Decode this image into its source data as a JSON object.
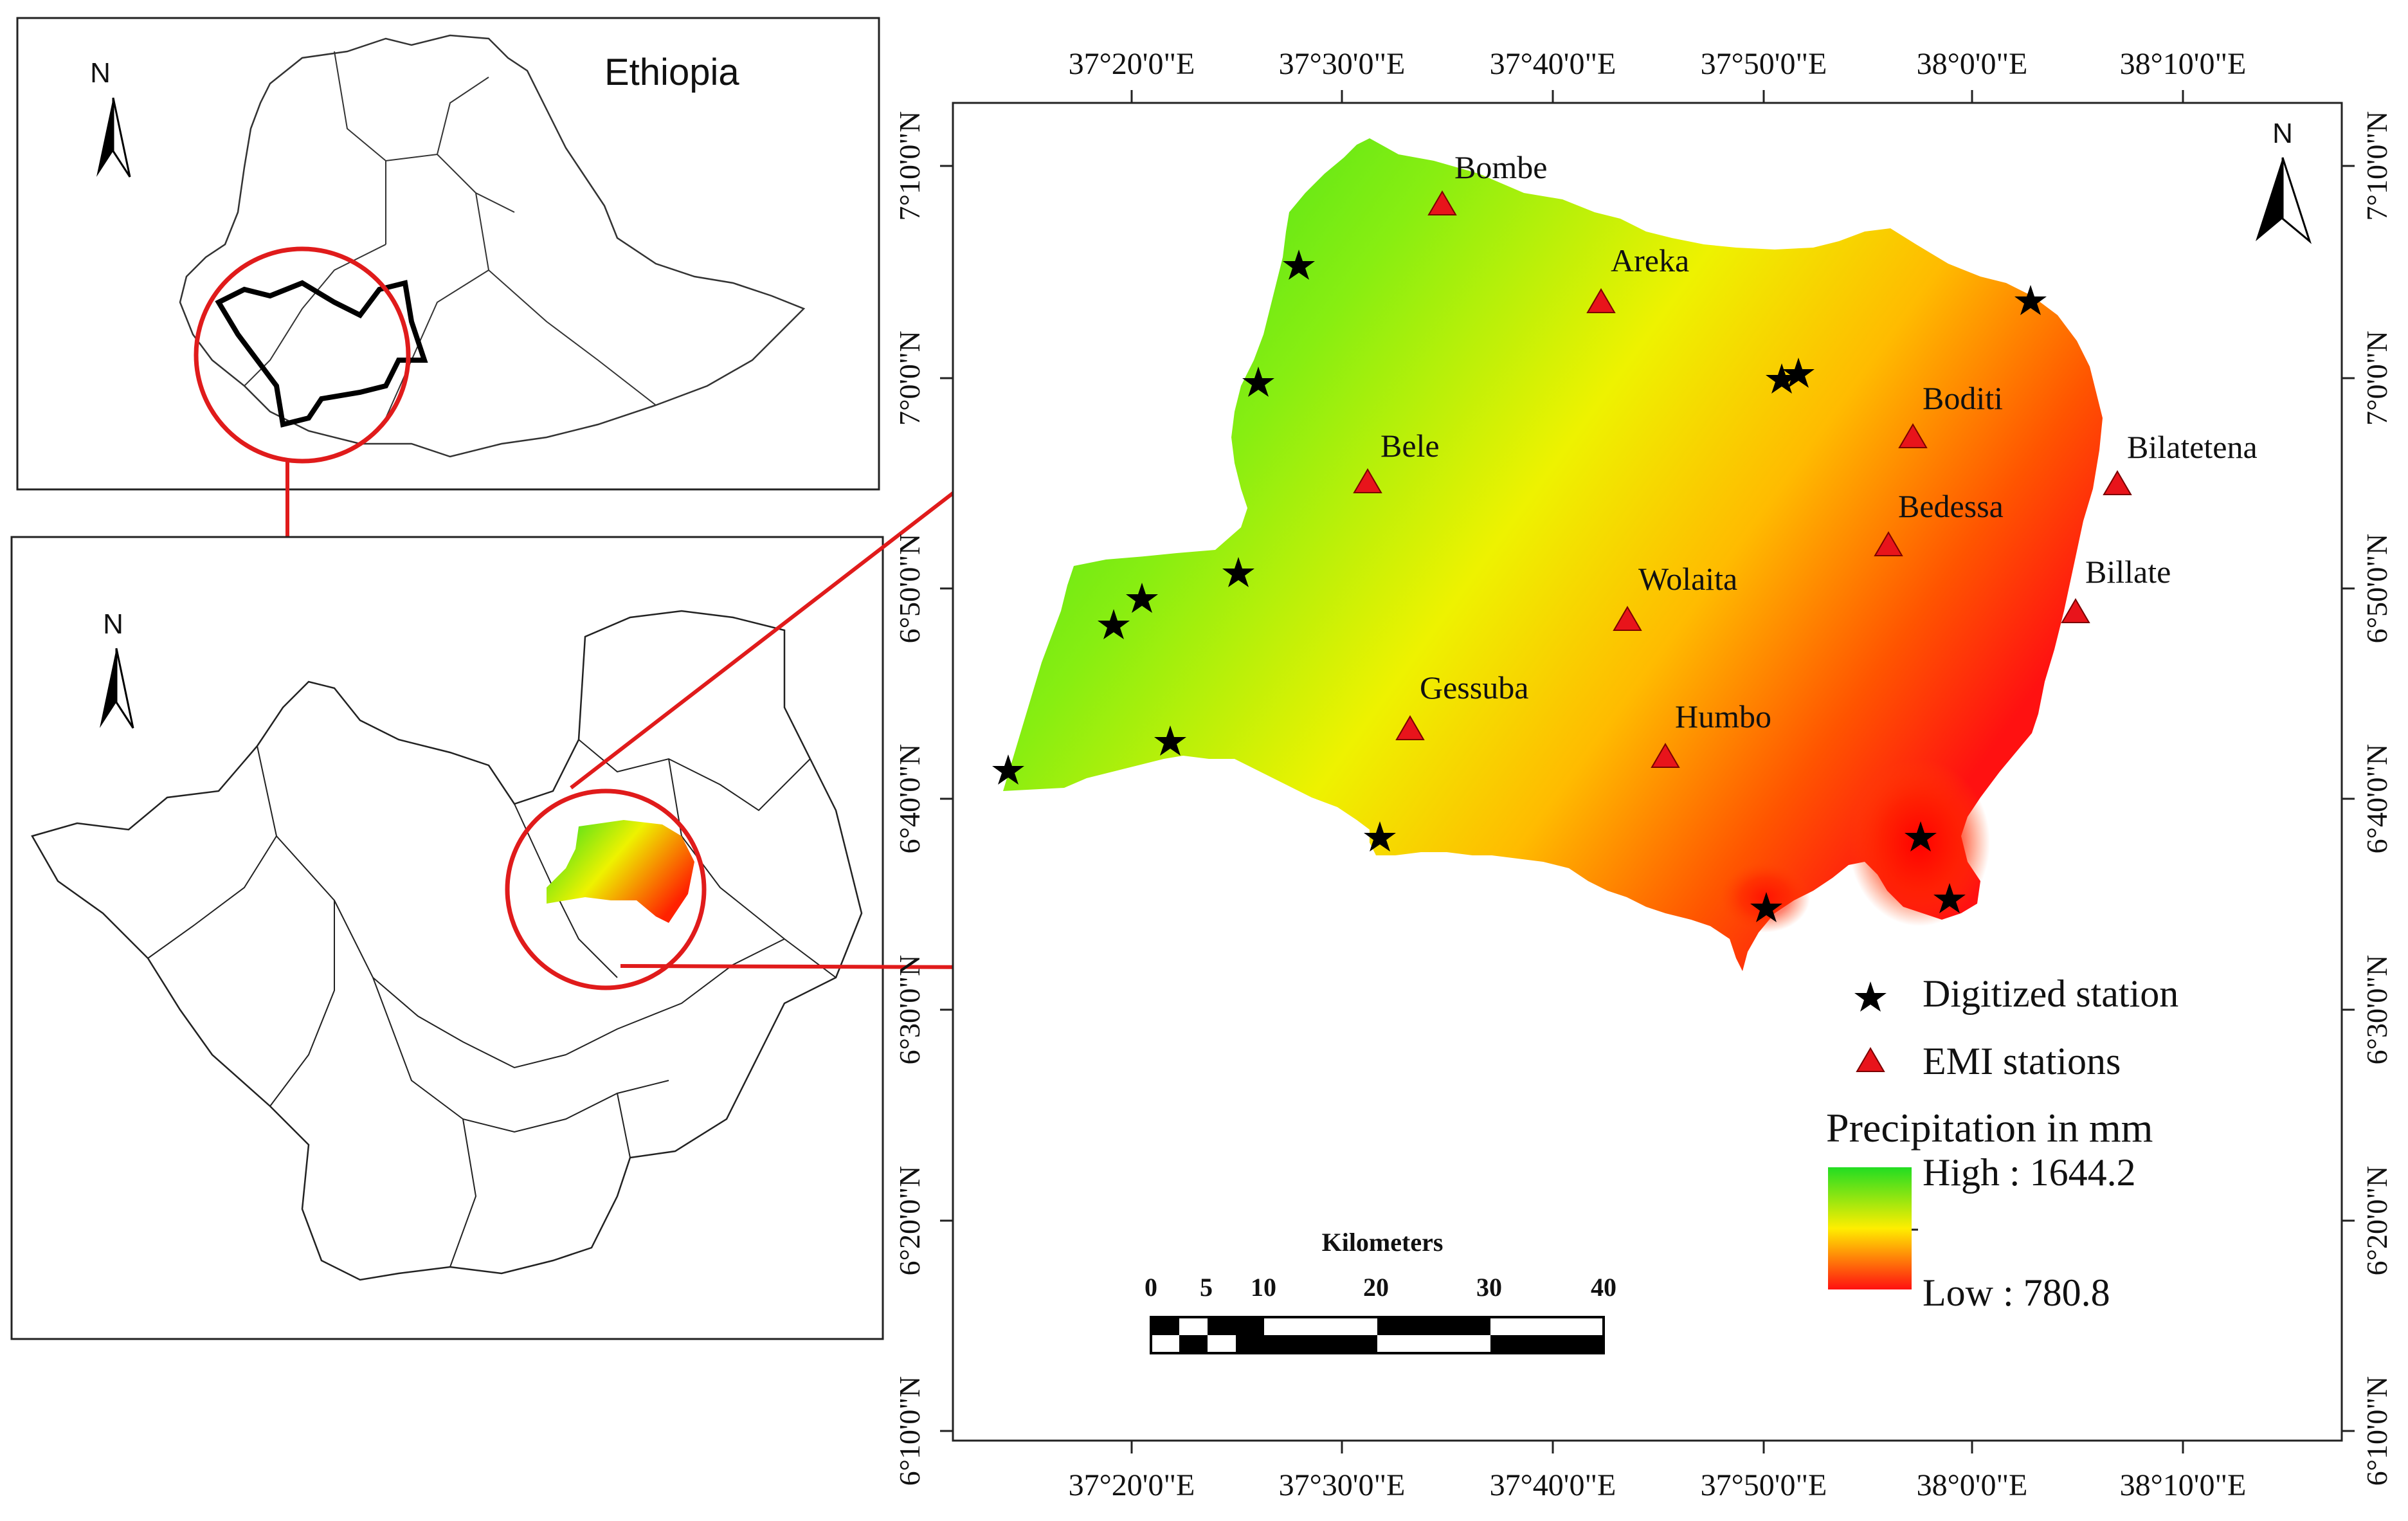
{
  "inset_top": {
    "title": "Ethiopia",
    "north_label": "N"
  },
  "inset_mid": {
    "north_label": "N"
  },
  "main_map": {
    "north_label": "N",
    "lon_labels": [
      "37°20'0\"E",
      "37°30'0\"E",
      "37°40'0\"E",
      "37°50'0\"E",
      "38°0'0\"E",
      "38°10'0\"E"
    ],
    "lat_labels": [
      "7°10'0\"N",
      "7°0'0\"N",
      "6°50'0\"N",
      "6°40'0\"N",
      "6°30'0\"N",
      "6°20'0\"N",
      "6°10'0\"N"
    ],
    "emi_stations": [
      "Bombe",
      "Areka",
      "Bele",
      "Boditi",
      "Bilatetena",
      "Bedessa",
      "Wolaita",
      "Billate",
      "Gessuba",
      "Humbo"
    ],
    "legend": {
      "digitized_label": "Digitized station",
      "emi_label": "EMI stations",
      "title": "Precipitation in mm",
      "high_label": "High : 1644.2",
      "low_label": "Low : 780.8",
      "high_color": "#22dd22",
      "mid_color": "#ffee00",
      "low_color": "#ff1111"
    },
    "scalebar": {
      "title": "Kilometers",
      "ticks": [
        "0",
        "5",
        "10",
        "20",
        "30",
        "40"
      ]
    }
  }
}
